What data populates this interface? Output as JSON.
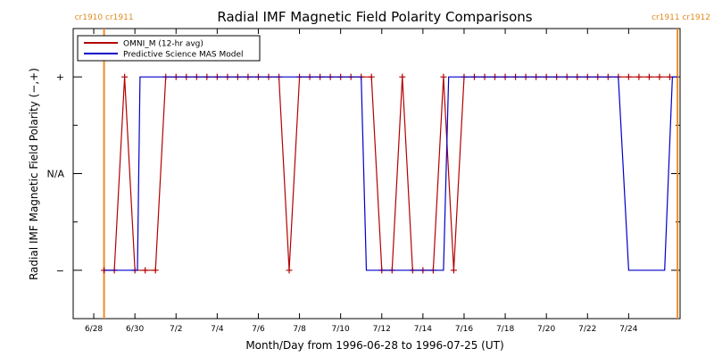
{
  "chart_data": {
    "type": "line",
    "title": "Radial IMF Magnetic Field Polarity Comparisons",
    "xlabel": "Month/Day from 1996-06-28 to 1996-07-25 (UT)",
    "ylabel": "Radial IMF Magnetic Field Polarity (−,+)",
    "xlim": [
      "1996-06-27 00:00",
      "1996-07-26 12:00"
    ],
    "x_ticks": [
      "6/28",
      "6/30",
      "7/2",
      "7/4",
      "7/6",
      "7/8",
      "7/10",
      "7/12",
      "7/14",
      "7/16",
      "7/18",
      "7/20",
      "7/22",
      "7/24"
    ],
    "x_tick_dates": [
      "1996-06-28",
      "1996-06-30",
      "1996-07-02",
      "1996-07-04",
      "1996-07-06",
      "1996-07-08",
      "1996-07-10",
      "1996-07-12",
      "1996-07-14",
      "1996-07-16",
      "1996-07-18",
      "1996-07-20",
      "1996-07-22",
      "1996-07-24"
    ],
    "y_categories": [
      "−",
      "N/A",
      "+"
    ],
    "ylim": [
      -1.5,
      1.5
    ],
    "legend_position": "top-left",
    "colors": {
      "series1": "#b40000",
      "series2": "#0000c8",
      "carrington": "#f08c28"
    },
    "carrington_markers": [
      {
        "labels": [
          "cr1910",
          "cr1911"
        ],
        "date": "1996-06-28 12:00"
      },
      {
        "labels": [
          "cr1911",
          "cr1912"
        ],
        "date": "1996-07-26 09:00"
      }
    ],
    "series": [
      {
        "name": "OMNI_M (12-hr avg)",
        "color": "#b40000",
        "markers": true,
        "points": [
          [
            "1996-06-28 12:00",
            -1
          ],
          [
            "1996-06-29 00:00",
            -1
          ],
          [
            "1996-06-29 12:00",
            1
          ],
          [
            "1996-06-30 00:00",
            -1
          ],
          [
            "1996-06-30 12:00",
            -1
          ],
          [
            "1996-07-01 00:00",
            -1
          ],
          [
            "1996-07-01 12:00",
            1
          ],
          [
            "1996-07-02 00:00",
            1
          ],
          [
            "1996-07-02 12:00",
            1
          ],
          [
            "1996-07-03 00:00",
            1
          ],
          [
            "1996-07-03 12:00",
            1
          ],
          [
            "1996-07-04 00:00",
            1
          ],
          [
            "1996-07-04 12:00",
            1
          ],
          [
            "1996-07-05 00:00",
            1
          ],
          [
            "1996-07-05 12:00",
            1
          ],
          [
            "1996-07-06 00:00",
            1
          ],
          [
            "1996-07-06 12:00",
            1
          ],
          [
            "1996-07-07 00:00",
            1
          ],
          [
            "1996-07-07 12:00",
            -1
          ],
          [
            "1996-07-08 00:00",
            1
          ],
          [
            "1996-07-08 12:00",
            1
          ],
          [
            "1996-07-09 00:00",
            1
          ],
          [
            "1996-07-09 12:00",
            1
          ],
          [
            "1996-07-10 00:00",
            1
          ],
          [
            "1996-07-10 12:00",
            1
          ],
          [
            "1996-07-11 00:00",
            1
          ],
          [
            "1996-07-11 12:00",
            1
          ],
          [
            "1996-07-12 00:00",
            -1
          ],
          [
            "1996-07-12 12:00",
            -1
          ],
          [
            "1996-07-13 00:00",
            1
          ],
          [
            "1996-07-13 12:00",
            -1
          ],
          [
            "1996-07-14 00:00",
            -1
          ],
          [
            "1996-07-14 12:00",
            -1
          ],
          [
            "1996-07-15 00:00",
            1
          ],
          [
            "1996-07-15 12:00",
            -1
          ],
          [
            "1996-07-16 00:00",
            1
          ],
          [
            "1996-07-16 12:00",
            1
          ],
          [
            "1996-07-17 00:00",
            1
          ],
          [
            "1996-07-17 12:00",
            1
          ],
          [
            "1996-07-18 00:00",
            1
          ],
          [
            "1996-07-18 12:00",
            1
          ],
          [
            "1996-07-19 00:00",
            1
          ],
          [
            "1996-07-19 12:00",
            1
          ],
          [
            "1996-07-20 00:00",
            1
          ],
          [
            "1996-07-20 12:00",
            1
          ],
          [
            "1996-07-21 00:00",
            1
          ],
          [
            "1996-07-21 12:00",
            1
          ],
          [
            "1996-07-22 00:00",
            1
          ],
          [
            "1996-07-22 12:00",
            1
          ],
          [
            "1996-07-23 00:00",
            1
          ],
          [
            "1996-07-23 12:00",
            1
          ],
          [
            "1996-07-24 00:00",
            1
          ],
          [
            "1996-07-24 12:00",
            1
          ],
          [
            "1996-07-25 00:00",
            1
          ],
          [
            "1996-07-25 12:00",
            1
          ],
          [
            "1996-07-26 00:00",
            1
          ]
        ]
      },
      {
        "name": "Predictive Science MAS Model",
        "color": "#0000c8",
        "markers": false,
        "points": [
          [
            "1996-06-28 12:00",
            -1
          ],
          [
            "1996-06-30 03:00",
            -1
          ],
          [
            "1996-06-30 06:00",
            1
          ],
          [
            "1996-07-11 00:00",
            1
          ],
          [
            "1996-07-11 06:00",
            -1
          ],
          [
            "1996-07-15 00:00",
            -1
          ],
          [
            "1996-07-15 06:00",
            1
          ],
          [
            "1996-07-23 12:00",
            1
          ],
          [
            "1996-07-24 00:00",
            -1
          ],
          [
            "1996-07-25 18:00",
            -1
          ],
          [
            "1996-07-26 03:00",
            1
          ],
          [
            "1996-07-26 09:00",
            1
          ]
        ]
      }
    ]
  }
}
